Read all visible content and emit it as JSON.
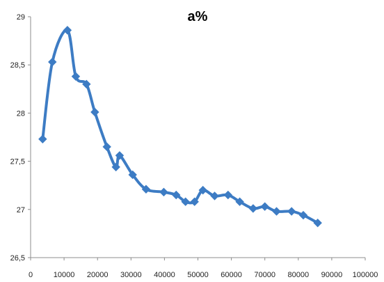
{
  "chart_data": {
    "type": "line",
    "title": "a%",
    "xlabel": "",
    "ylabel": "",
    "xlim": [
      0,
      100000
    ],
    "ylim": [
      26.5,
      29
    ],
    "x_ticks": [
      0,
      10000,
      20000,
      30000,
      40000,
      50000,
      60000,
      70000,
      80000,
      90000,
      100000
    ],
    "x_tick_labels": [
      "0",
      "10000",
      "20000",
      "30000",
      "40000",
      "50000",
      "60000",
      "70000",
      "80000",
      "90000",
      "100000"
    ],
    "y_ticks": [
      26.5,
      27,
      27.5,
      28,
      28.5,
      29
    ],
    "y_tick_labels": [
      "26,5",
      "27",
      "27,5",
      "28",
      "28,5",
      "29"
    ],
    "grid": false,
    "legend": "none",
    "colors": {
      "series": "#3d7cc4",
      "axis": "#8c8c8c",
      "text": "#222222"
    },
    "series": [
      {
        "x": [
          3600,
          6500,
          11000,
          13500,
          16700,
          19200,
          22800,
          25500,
          26600,
          30500,
          34500,
          39800,
          43500,
          46300,
          49000,
          51500,
          55000,
          59000,
          62500,
          66500,
          70000,
          73500,
          78000,
          81500,
          85800
        ],
        "values": [
          27.73,
          28.53,
          28.86,
          28.38,
          28.3,
          28.01,
          27.65,
          27.44,
          27.56,
          27.36,
          27.21,
          27.18,
          27.15,
          27.08,
          27.08,
          27.2,
          27.14,
          27.15,
          27.08,
          27.01,
          27.03,
          26.98,
          26.98,
          26.94,
          26.86
        ]
      }
    ]
  }
}
